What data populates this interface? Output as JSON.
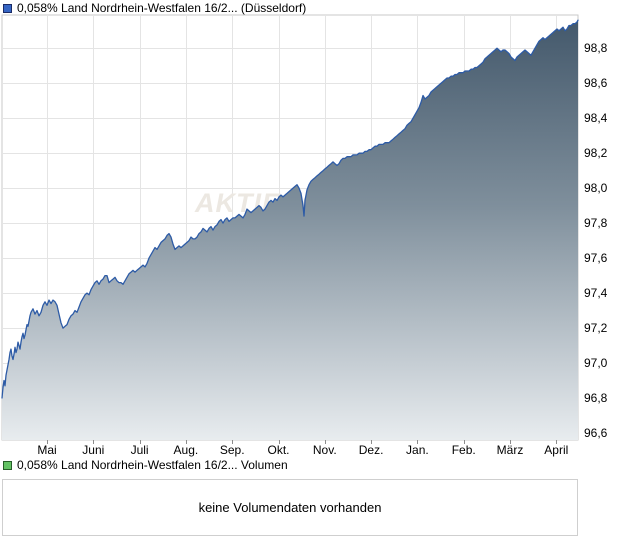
{
  "legends": {
    "price": "0,058% Land Nordrhein-Westfalen 16/2... (Düsseldorf)",
    "volume": "0,058% Land Nordrhein-Westfalen 16/2... Volumen"
  },
  "price_marker": {
    "fill": "#3565c4",
    "border": "#1b2b66"
  },
  "volume_marker": {
    "fill": "#63c364",
    "border": "#265e28"
  },
  "volume_panel": {
    "message": "keine Volumendaten vorhanden"
  },
  "chart_data": {
    "type": "area",
    "title": "0,058% Land Nordrhein-Westfalen 16/2... (Düsseldorf)",
    "watermark": "AKTIENCHECK",
    "xlabel": "",
    "ylabel": "",
    "grid": true,
    "legend_position": "top-left",
    "x_tick_labels": [
      "Mai",
      "Juni",
      "Juli",
      "Aug.",
      "Sep.",
      "Okt.",
      "Nov.",
      "Dez.",
      "Jan.",
      "Feb.",
      "März",
      "April"
    ],
    "y_ticks": [
      {
        "value": 96.6,
        "label": "96,6"
      },
      {
        "value": 96.8,
        "label": "96,8"
      },
      {
        "value": 97.0,
        "label": "97,0"
      },
      {
        "value": 97.2,
        "label": "97,2"
      },
      {
        "value": 97.4,
        "label": "97,4"
      },
      {
        "value": 97.6,
        "label": "97,6"
      },
      {
        "value": 97.8,
        "label": "97,8"
      },
      {
        "value": 98.0,
        "label": "98,0"
      },
      {
        "value": 98.2,
        "label": "98,2"
      },
      {
        "value": 98.4,
        "label": "98,4"
      },
      {
        "value": 98.6,
        "label": "98,6"
      },
      {
        "value": 98.8,
        "label": "98,8"
      }
    ],
    "ylim": [
      96.56,
      98.99
    ],
    "line_color": "#2d5ba6",
    "fill_gradient": [
      "#42576a",
      "#7f8f9c",
      "#e8ecef"
    ],
    "grid_color": "#e4e4e4",
    "border_color": "#c9c9c9",
    "tick_color": "#8c8c8c",
    "watermark_color": "#ece8e2",
    "points": [
      [
        2,
        96.8
      ],
      [
        3,
        96.86
      ],
      [
        4,
        96.9
      ],
      [
        5,
        96.87
      ],
      [
        6,
        96.93
      ],
      [
        7,
        96.96
      ],
      [
        8,
        96.99
      ],
      [
        9,
        97.02
      ],
      [
        10,
        97.06
      ],
      [
        11,
        97.08
      ],
      [
        12,
        97.04
      ],
      [
        13,
        97.02
      ],
      [
        14,
        97.05
      ],
      [
        15,
        97.09
      ],
      [
        16,
        97.06
      ],
      [
        17,
        97.08
      ],
      [
        18,
        97.12
      ],
      [
        19,
        97.1
      ],
      [
        20,
        97.08
      ],
      [
        21,
        97.12
      ],
      [
        22,
        97.15
      ],
      [
        23,
        97.17
      ],
      [
        24,
        97.14
      ],
      [
        25,
        97.16
      ],
      [
        26,
        97.19
      ],
      [
        27,
        97.22
      ],
      [
        28,
        97.21
      ],
      [
        29,
        97.24
      ],
      [
        30,
        97.27
      ],
      [
        31,
        97.29
      ],
      [
        33,
        97.31
      ],
      [
        35,
        97.28
      ],
      [
        37,
        97.3
      ],
      [
        39,
        97.27
      ],
      [
        41,
        97.29
      ],
      [
        43,
        97.33
      ],
      [
        45,
        97.35
      ],
      [
        47,
        97.33
      ],
      [
        49,
        97.36
      ],
      [
        51,
        97.34
      ],
      [
        53,
        97.36
      ],
      [
        55,
        97.35
      ],
      [
        57,
        97.33
      ],
      [
        59,
        97.28
      ],
      [
        61,
        97.23
      ],
      [
        63,
        97.2
      ],
      [
        65,
        97.21
      ],
      [
        67,
        97.22
      ],
      [
        69,
        97.25
      ],
      [
        71,
        97.27
      ],
      [
        73,
        97.28
      ],
      [
        75,
        97.3
      ],
      [
        77,
        97.29
      ],
      [
        79,
        97.32
      ],
      [
        81,
        97.35
      ],
      [
        83,
        97.37
      ],
      [
        85,
        97.39
      ],
      [
        87,
        97.4
      ],
      [
        89,
        97.39
      ],
      [
        91,
        97.42
      ],
      [
        93,
        97.44
      ],
      [
        95,
        97.46
      ],
      [
        97,
        97.47
      ],
      [
        99,
        97.45
      ],
      [
        101,
        97.47
      ],
      [
        103,
        97.48
      ],
      [
        105,
        97.5
      ],
      [
        107,
        97.5
      ],
      [
        109,
        97.46
      ],
      [
        111,
        97.47
      ],
      [
        113,
        97.48
      ],
      [
        115,
        97.49
      ],
      [
        117,
        97.47
      ],
      [
        119,
        97.46
      ],
      [
        121,
        97.46
      ],
      [
        123,
        97.45
      ],
      [
        125,
        97.47
      ],
      [
        127,
        97.49
      ],
      [
        129,
        97.51
      ],
      [
        131,
        97.52
      ],
      [
        133,
        97.53
      ],
      [
        135,
        97.52
      ],
      [
        137,
        97.53
      ],
      [
        139,
        97.54
      ],
      [
        141,
        97.55
      ],
      [
        143,
        97.56
      ],
      [
        145,
        97.55
      ],
      [
        147,
        97.57
      ],
      [
        149,
        97.6
      ],
      [
        151,
        97.62
      ],
      [
        153,
        97.64
      ],
      [
        155,
        97.66
      ],
      [
        157,
        97.65
      ],
      [
        159,
        97.67
      ],
      [
        161,
        97.69
      ],
      [
        163,
        97.7
      ],
      [
        165,
        97.71
      ],
      [
        167,
        97.73
      ],
      [
        169,
        97.74
      ],
      [
        171,
        97.72
      ],
      [
        173,
        97.68
      ],
      [
        175,
        97.65
      ],
      [
        177,
        97.66
      ],
      [
        179,
        97.67
      ],
      [
        181,
        97.66
      ],
      [
        183,
        97.67
      ],
      [
        185,
        97.68
      ],
      [
        187,
        97.69
      ],
      [
        189,
        97.7
      ],
      [
        191,
        97.72
      ],
      [
        193,
        97.71
      ],
      [
        195,
        97.71
      ],
      [
        197,
        97.72
      ],
      [
        199,
        97.74
      ],
      [
        201,
        97.75
      ],
      [
        203,
        97.77
      ],
      [
        205,
        97.76
      ],
      [
        207,
        97.75
      ],
      [
        209,
        97.77
      ],
      [
        211,
        97.78
      ],
      [
        213,
        97.76
      ],
      [
        215,
        97.78
      ],
      [
        217,
        97.79
      ],
      [
        219,
        97.81
      ],
      [
        221,
        97.82
      ],
      [
        223,
        97.8
      ],
      [
        225,
        97.82
      ],
      [
        227,
        97.83
      ],
      [
        229,
        97.81
      ],
      [
        231,
        97.82
      ],
      [
        233,
        97.83
      ],
      [
        235,
        97.83
      ],
      [
        237,
        97.84
      ],
      [
        239,
        97.85
      ],
      [
        241,
        97.84
      ],
      [
        243,
        97.83
      ],
      [
        245,
        97.85
      ],
      [
        247,
        97.88
      ],
      [
        249,
        97.87
      ],
      [
        251,
        97.86
      ],
      [
        253,
        97.87
      ],
      [
        255,
        97.88
      ],
      [
        257,
        97.89
      ],
      [
        259,
        97.9
      ],
      [
        261,
        97.89
      ],
      [
        263,
        97.87
      ],
      [
        265,
        97.88
      ],
      [
        267,
        97.9
      ],
      [
        269,
        97.92
      ],
      [
        271,
        97.93
      ],
      [
        273,
        97.92
      ],
      [
        275,
        97.94
      ],
      [
        277,
        97.93
      ],
      [
        279,
        97.95
      ],
      [
        281,
        97.96
      ],
      [
        283,
        97.95
      ],
      [
        285,
        97.96
      ],
      [
        287,
        97.97
      ],
      [
        289,
        97.98
      ],
      [
        291,
        97.99
      ],
      [
        293,
        98.0
      ],
      [
        295,
        98.01
      ],
      [
        297,
        98.02
      ],
      [
        299,
        98.0
      ],
      [
        301,
        97.97
      ],
      [
        303,
        97.9
      ],
      [
        304,
        97.84
      ],
      [
        305,
        97.93
      ],
      [
        307,
        97.99
      ],
      [
        309,
        98.02
      ],
      [
        311,
        98.04
      ],
      [
        313,
        98.05
      ],
      [
        315,
        98.06
      ],
      [
        317,
        98.07
      ],
      [
        319,
        98.08
      ],
      [
        321,
        98.09
      ],
      [
        323,
        98.1
      ],
      [
        325,
        98.11
      ],
      [
        327,
        98.12
      ],
      [
        329,
        98.13
      ],
      [
        331,
        98.14
      ],
      [
        333,
        98.15
      ],
      [
        335,
        98.14
      ],
      [
        337,
        98.13
      ],
      [
        339,
        98.14
      ],
      [
        341,
        98.16
      ],
      [
        343,
        98.17
      ],
      [
        345,
        98.17
      ],
      [
        347,
        98.18
      ],
      [
        349,
        98.18
      ],
      [
        351,
        98.18
      ],
      [
        353,
        98.19
      ],
      [
        355,
        98.19
      ],
      [
        357,
        98.19
      ],
      [
        359,
        98.2
      ],
      [
        361,
        98.2
      ],
      [
        363,
        98.2
      ],
      [
        365,
        98.21
      ],
      [
        367,
        98.21
      ],
      [
        369,
        98.22
      ],
      [
        371,
        98.22
      ],
      [
        373,
        98.23
      ],
      [
        375,
        98.24
      ],
      [
        377,
        98.24
      ],
      [
        379,
        98.25
      ],
      [
        381,
        98.25
      ],
      [
        383,
        98.25
      ],
      [
        385,
        98.26
      ],
      [
        387,
        98.26
      ],
      [
        389,
        98.26
      ],
      [
        391,
        98.27
      ],
      [
        393,
        98.28
      ],
      [
        395,
        98.29
      ],
      [
        397,
        98.3
      ],
      [
        399,
        98.31
      ],
      [
        401,
        98.32
      ],
      [
        403,
        98.33
      ],
      [
        405,
        98.34
      ],
      [
        407,
        98.36
      ],
      [
        409,
        98.37
      ],
      [
        411,
        98.38
      ],
      [
        413,
        98.4
      ],
      [
        415,
        98.42
      ],
      [
        417,
        98.44
      ],
      [
        419,
        98.46
      ],
      [
        421,
        98.49
      ],
      [
        423,
        98.53
      ],
      [
        425,
        98.51
      ],
      [
        427,
        98.52
      ],
      [
        429,
        98.53
      ],
      [
        431,
        98.55
      ],
      [
        433,
        98.56
      ],
      [
        435,
        98.57
      ],
      [
        437,
        98.58
      ],
      [
        439,
        98.59
      ],
      [
        441,
        98.6
      ],
      [
        443,
        98.61
      ],
      [
        445,
        98.62
      ],
      [
        447,
        98.63
      ],
      [
        449,
        98.63
      ],
      [
        451,
        98.64
      ],
      [
        453,
        98.64
      ],
      [
        455,
        98.65
      ],
      [
        457,
        98.65
      ],
      [
        459,
        98.66
      ],
      [
        461,
        98.66
      ],
      [
        463,
        98.66
      ],
      [
        465,
        98.67
      ],
      [
        467,
        98.67
      ],
      [
        469,
        98.67
      ],
      [
        471,
        98.68
      ],
      [
        473,
        98.68
      ],
      [
        475,
        98.69
      ],
      [
        477,
        98.69
      ],
      [
        479,
        98.7
      ],
      [
        481,
        98.71
      ],
      [
        483,
        98.72
      ],
      [
        485,
        98.74
      ],
      [
        487,
        98.75
      ],
      [
        489,
        98.76
      ],
      [
        491,
        98.77
      ],
      [
        493,
        98.78
      ],
      [
        495,
        98.79
      ],
      [
        497,
        98.8
      ],
      [
        499,
        98.79
      ],
      [
        501,
        98.78
      ],
      [
        503,
        98.79
      ],
      [
        505,
        98.79
      ],
      [
        507,
        98.78
      ],
      [
        509,
        98.77
      ],
      [
        511,
        98.75
      ],
      [
        513,
        98.74
      ],
      [
        515,
        98.73
      ],
      [
        517,
        98.75
      ],
      [
        519,
        98.76
      ],
      [
        521,
        98.77
      ],
      [
        523,
        98.78
      ],
      [
        525,
        98.79
      ],
      [
        527,
        98.78
      ],
      [
        529,
        98.77
      ],
      [
        531,
        98.76
      ],
      [
        533,
        98.78
      ],
      [
        535,
        98.8
      ],
      [
        537,
        98.82
      ],
      [
        539,
        98.84
      ],
      [
        541,
        98.85
      ],
      [
        543,
        98.86
      ],
      [
        545,
        98.85
      ],
      [
        547,
        98.86
      ],
      [
        549,
        98.87
      ],
      [
        551,
        98.88
      ],
      [
        553,
        98.89
      ],
      [
        555,
        98.9
      ],
      [
        557,
        98.91
      ],
      [
        559,
        98.9
      ],
      [
        561,
        98.91
      ],
      [
        563,
        98.92
      ],
      [
        565,
        98.9
      ],
      [
        567,
        98.91
      ],
      [
        569,
        98.93
      ],
      [
        571,
        98.93
      ],
      [
        573,
        98.94
      ],
      [
        575,
        98.94
      ],
      [
        577,
        98.95
      ],
      [
        578,
        98.96
      ]
    ]
  }
}
